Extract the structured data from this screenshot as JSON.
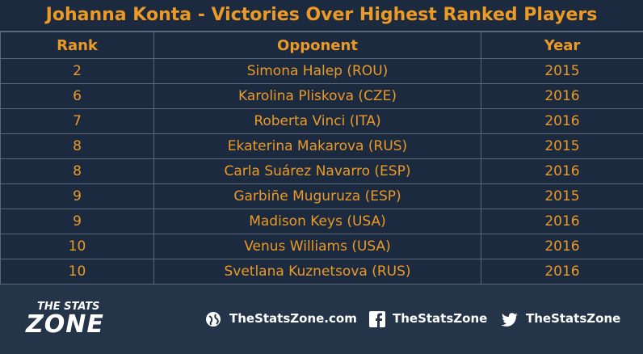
{
  "header": {
    "title": "Johanna Konta - Victories Over Highest Ranked Players"
  },
  "table": {
    "columns": [
      "Rank",
      "Opponent",
      "Year"
    ],
    "rows": [
      [
        "2",
        "Simona Halep (ROU)",
        "2015"
      ],
      [
        "6",
        "Karolina Pliskova (CZE)",
        "2016"
      ],
      [
        "7",
        "Roberta Vinci (ITA)",
        "2016"
      ],
      [
        "8",
        "Ekaterina Makarova (RUS)",
        "2015"
      ],
      [
        "8",
        "Carla Suárez Navarro (ESP)",
        "2016"
      ],
      [
        "9",
        "Garbiñe Muguruza (ESP)",
        "2015"
      ],
      [
        "9",
        "Madison Keys (USA)",
        "2016"
      ],
      [
        "10",
        "Venus Williams (USA)",
        "2016"
      ],
      [
        "10",
        "Svetlana Kuznetsova (RUS)",
        "2016"
      ]
    ]
  },
  "footer": {
    "logo_top": "THE STATS",
    "logo_bottom": "ZONE",
    "website": "TheStatsZone.com",
    "facebook": "TheStatsZone",
    "twitter": "TheStatsZone"
  }
}
